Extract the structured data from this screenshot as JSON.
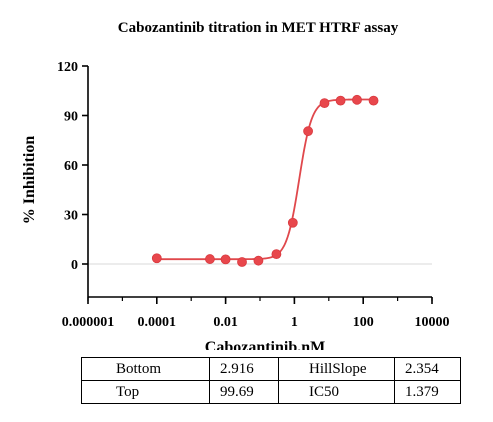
{
  "chart_data": {
    "type": "scatter",
    "title": "Cabozantinib titration in MET HTRF assay",
    "xlabel": "Cabozantinib,nM",
    "ylabel": "% Inhibition",
    "xscale": "log10",
    "xlim": [
      1e-06,
      10000
    ],
    "ylim": [
      -20,
      120
    ],
    "x_ticks": [
      1e-06,
      0.0001,
      0.01,
      1,
      100,
      10000
    ],
    "x_tick_labels": [
      "0.000001",
      "0.0001",
      "0.01",
      "1",
      "100",
      "10000"
    ],
    "y_ticks": [
      0,
      30,
      60,
      90,
      120
    ],
    "y_tick_labels": [
      "0",
      "30",
      "60",
      "90",
      "120"
    ],
    "marker_color": "#e8474c",
    "curve_color": "#e0484c",
    "zero_line_color": "#d9d9d9",
    "points": [
      {
        "x": 0.0001,
        "y": 3.5
      },
      {
        "x": 0.0035,
        "y": 3.0
      },
      {
        "x": 0.01,
        "y": 2.8
      },
      {
        "x": 0.03,
        "y": 1.2
      },
      {
        "x": 0.09,
        "y": 2.0
      },
      {
        "x": 0.3,
        "y": 6.0
      },
      {
        "x": 0.9,
        "y": 25.0
      },
      {
        "x": 2.5,
        "y": 80.5
      },
      {
        "x": 7.5,
        "y": 97.5
      },
      {
        "x": 22,
        "y": 99.0
      },
      {
        "x": 66,
        "y": 99.5
      },
      {
        "x": 200,
        "y": 99.0
      }
    ],
    "fit": {
      "model": "four-parameter logistic",
      "bottom": 2.916,
      "top": 99.69,
      "hillslope": 2.354,
      "ic50": 1.379
    }
  },
  "results_table": {
    "rows": [
      [
        "Bottom",
        "2.916",
        "HillSlope",
        "2.354"
      ],
      [
        "Top",
        "99.69",
        "IC50",
        "1.379"
      ]
    ]
  }
}
